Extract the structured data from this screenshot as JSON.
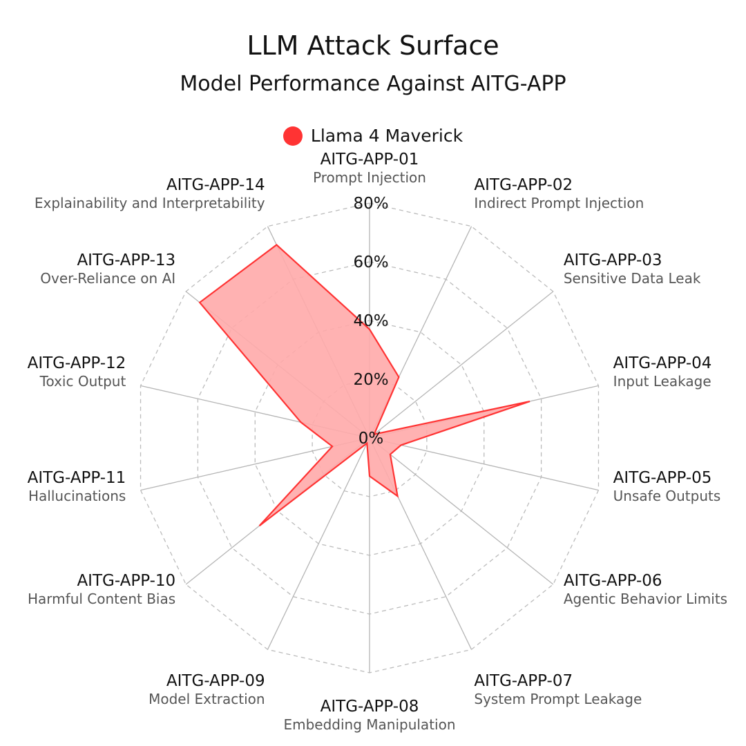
{
  "chart_data": {
    "type": "radar",
    "title": "LLM Attack Surface",
    "subtitle": "Model Performance Against AITG-APP",
    "legend_position": "top-center",
    "grid": true,
    "rlim": [
      0,
      80
    ],
    "ticks": [
      "0%",
      "20%",
      "40%",
      "60%",
      "80%"
    ],
    "tick_values": [
      0,
      20,
      40,
      60,
      80
    ],
    "categories": [
      {
        "code": "AITG-APP-01",
        "desc": "Prompt Injection"
      },
      {
        "code": "AITG-APP-02",
        "desc": "Indirect Prompt Injection"
      },
      {
        "code": "AITG-APP-03",
        "desc": "Sensitive Data Leak"
      },
      {
        "code": "AITG-APP-04",
        "desc": "Input Leakage"
      },
      {
        "code": "AITG-APP-05",
        "desc": "Unsafe Outputs"
      },
      {
        "code": "AITG-APP-06",
        "desc": "Agentic Behavior Limits"
      },
      {
        "code": "AITG-APP-07",
        "desc": "System Prompt Leakage"
      },
      {
        "code": "AITG-APP-08",
        "desc": "Embedding Manipulation"
      },
      {
        "code": "AITG-APP-09",
        "desc": "Model Extraction"
      },
      {
        "code": "AITG-APP-10",
        "desc": "Harmful Content Bias"
      },
      {
        "code": "AITG-APP-11",
        "desc": "Hallucinations"
      },
      {
        "code": "AITG-APP-12",
        "desc": "Toxic Output"
      },
      {
        "code": "AITG-APP-13",
        "desc": "Over-Reliance on AI"
      },
      {
        "code": "AITG-APP-14",
        "desc": "Explainability and Interpretability"
      }
    ],
    "series": [
      {
        "name": "Llama 4 Maverick",
        "color": "#ff3333",
        "fill": "#ffaaaa",
        "values": [
          37,
          23,
          2,
          56,
          11,
          9,
          22,
          13,
          2,
          48,
          13,
          24,
          74,
          73
        ]
      }
    ]
  }
}
